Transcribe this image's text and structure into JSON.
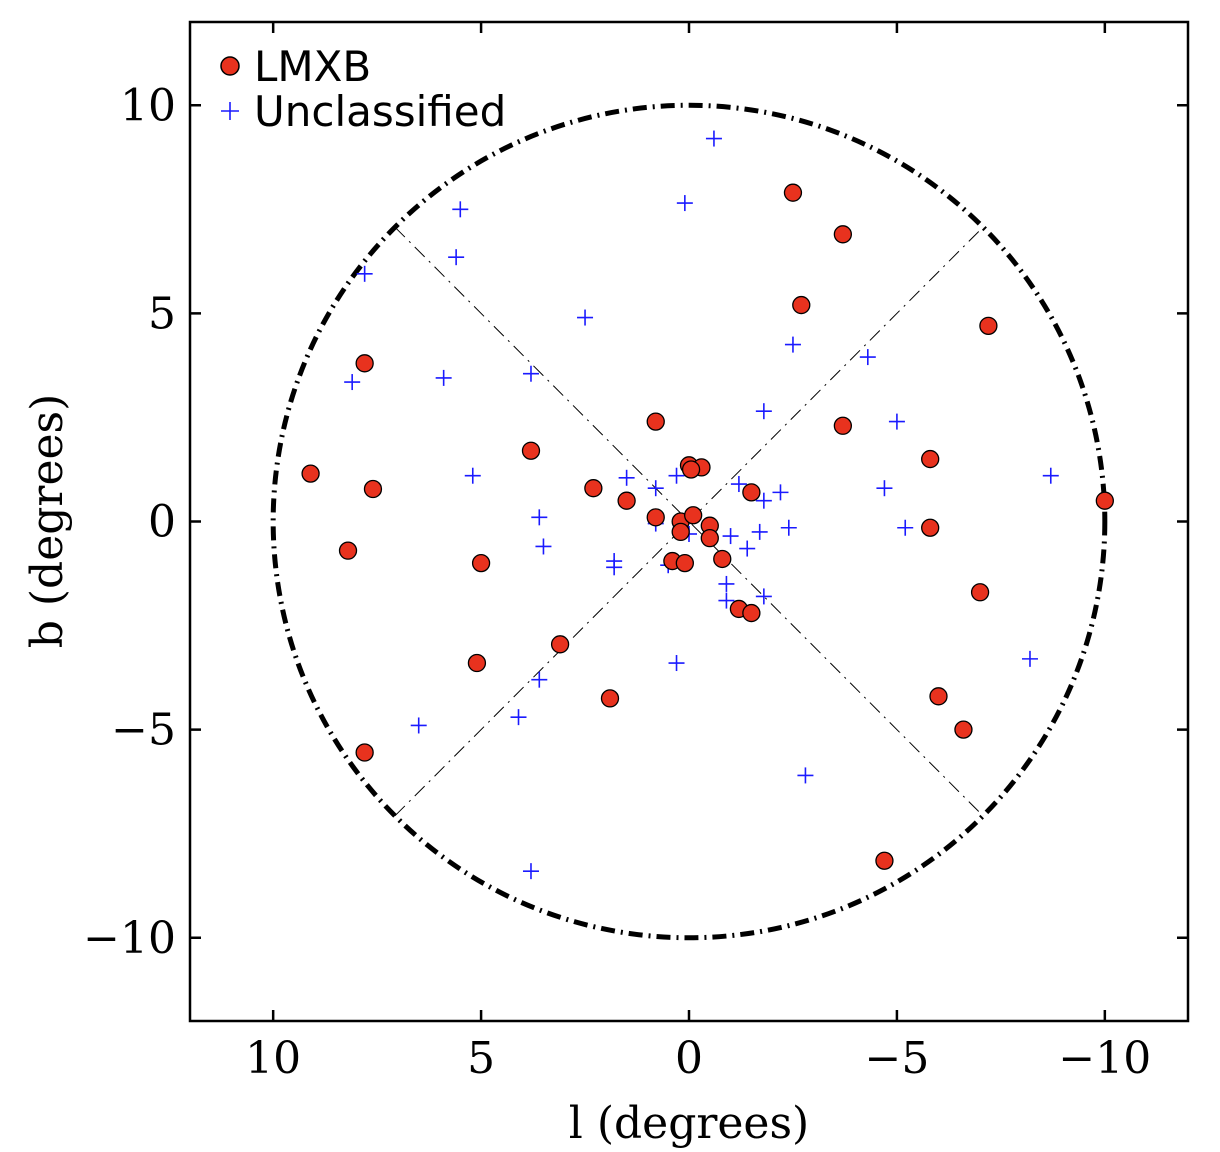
{
  "chart_data": {
    "type": "scatter",
    "xlabel": "l (degrees)",
    "ylabel": "b (degrees)",
    "xlim": [
      12,
      -12
    ],
    "ylim": [
      -12,
      12
    ],
    "xticks": [
      10,
      5,
      0,
      -5,
      -10
    ],
    "yticks": [
      10,
      5,
      0,
      -5,
      -10
    ],
    "xtick_labels": [
      "10",
      "5",
      "0",
      "−5",
      "−10"
    ],
    "ytick_labels": [
      "10",
      "5",
      "0",
      "−5",
      "−10"
    ],
    "grid": false,
    "legend_position": "top-left",
    "overlays": {
      "circle_radius": 10,
      "diagonal_half_length": 10
    },
    "series": [
      {
        "name": "LMXB",
        "marker": "circle",
        "color": "#e8321e",
        "edge_color": "#000000",
        "points": [
          [
            -2.5,
            7.9
          ],
          [
            -3.7,
            6.9
          ],
          [
            -2.7,
            5.2
          ],
          [
            -7.2,
            4.7
          ],
          [
            7.8,
            3.8
          ],
          [
            0.8,
            2.4
          ],
          [
            -3.7,
            2.3
          ],
          [
            3.8,
            1.7
          ],
          [
            -5.8,
            1.5
          ],
          [
            9.1,
            1.15
          ],
          [
            7.6,
            0.78
          ],
          [
            2.3,
            0.8
          ],
          [
            1.5,
            0.5
          ],
          [
            0.0,
            1.35
          ],
          [
            -0.3,
            1.3
          ],
          [
            -0.05,
            1.25
          ],
          [
            -10.0,
            0.5
          ],
          [
            -1.5,
            0.7
          ],
          [
            0.8,
            0.1
          ],
          [
            0.2,
            0.0
          ],
          [
            -0.1,
            0.15
          ],
          [
            -0.5,
            -0.1
          ],
          [
            -5.8,
            -0.15
          ],
          [
            0.2,
            -0.25
          ],
          [
            -0.5,
            -0.4
          ],
          [
            8.2,
            -0.7
          ],
          [
            5.0,
            -1.0
          ],
          [
            0.4,
            -0.95
          ],
          [
            0.1,
            -1.0
          ],
          [
            -0.8,
            -0.9
          ],
          [
            -7.0,
            -1.7
          ],
          [
            -1.2,
            -2.1
          ],
          [
            -1.5,
            -2.2
          ],
          [
            3.1,
            -2.95
          ],
          [
            5.1,
            -3.4
          ],
          [
            1.9,
            -4.25
          ],
          [
            -6.0,
            -4.2
          ],
          [
            -6.6,
            -5.0
          ],
          [
            7.8,
            -5.55
          ],
          [
            -4.7,
            -8.15
          ]
        ]
      },
      {
        "name": "Unclassified",
        "marker": "plus",
        "color": "#1a1aff",
        "points": [
          [
            -0.6,
            9.2
          ],
          [
            0.1,
            7.65
          ],
          [
            5.5,
            7.5
          ],
          [
            5.6,
            6.35
          ],
          [
            7.8,
            5.95
          ],
          [
            2.5,
            4.9
          ],
          [
            -2.5,
            4.25
          ],
          [
            -4.3,
            3.95
          ],
          [
            5.9,
            3.45
          ],
          [
            8.1,
            3.35
          ],
          [
            3.8,
            3.55
          ],
          [
            -1.8,
            2.65
          ],
          [
            -5.0,
            2.4
          ],
          [
            -2.2,
            0.7
          ],
          [
            -1.8,
            0.5
          ],
          [
            -4.7,
            0.8
          ],
          [
            -8.7,
            1.1
          ],
          [
            5.2,
            1.1
          ],
          [
            1.5,
            1.05
          ],
          [
            0.3,
            1.1
          ],
          [
            0.8,
            0.8
          ],
          [
            -1.2,
            0.9
          ],
          [
            3.6,
            0.1
          ],
          [
            0.8,
            -0.05
          ],
          [
            0.2,
            -0.1
          ],
          [
            0.0,
            -0.3
          ],
          [
            -2.4,
            -0.15
          ],
          [
            -5.2,
            -0.15
          ],
          [
            -1.7,
            -0.25
          ],
          [
            -1.0,
            -0.35
          ],
          [
            3.5,
            -0.6
          ],
          [
            -1.4,
            -0.65
          ],
          [
            1.8,
            -0.95
          ],
          [
            1.8,
            -1.1
          ],
          [
            0.5,
            -1.05
          ],
          [
            -0.9,
            -1.5
          ],
          [
            -1.8,
            -1.8
          ],
          [
            -0.9,
            -1.9
          ],
          [
            0.3,
            -3.4
          ],
          [
            -8.2,
            -3.3
          ],
          [
            3.6,
            -3.8
          ],
          [
            4.1,
            -4.7
          ],
          [
            6.5,
            -4.9
          ],
          [
            -2.8,
            -6.1
          ],
          [
            3.8,
            -8.4
          ]
        ]
      }
    ]
  }
}
